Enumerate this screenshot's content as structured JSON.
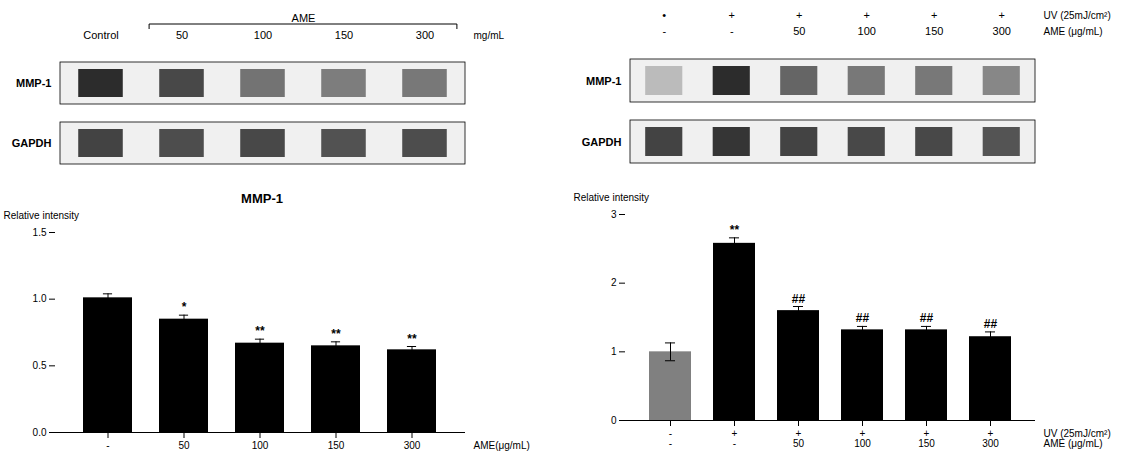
{
  "chart_data": [
    {
      "type": "blot",
      "rows": [
        "MMP-1",
        "GAPDH"
      ],
      "cells": [
        [
          0.82,
          0.7,
          0.52,
          0.48,
          0.5
        ],
        [
          0.72,
          0.68,
          0.7,
          0.66,
          0.68
        ]
      ],
      "category_rows": [
        {
          "name": "mg/mL",
          "labels": [
            "Control",
            "50",
            "100",
            "150",
            "300"
          ]
        }
      ],
      "bracket": {
        "label": "AME",
        "from": "50",
        "to": "300"
      }
    },
    {
      "type": "blot",
      "rows": [
        "MMP-1",
        "GAPDH"
      ],
      "cells": [
        [
          0.22,
          0.82,
          0.58,
          0.5,
          0.5,
          0.44
        ],
        [
          0.72,
          0.78,
          0.72,
          0.7,
          0.7,
          0.65
        ]
      ],
      "category_rows": [
        {
          "name": "UV (25mJ/cm²)",
          "labels": [
            "•",
            "+",
            "+",
            "+",
            "+",
            "+"
          ]
        },
        {
          "name": "AME (μg/mL)",
          "labels": [
            "-",
            "-",
            "50",
            "100",
            "150",
            "300"
          ]
        }
      ]
    },
    {
      "type": "bar",
      "title": "MMP-1",
      "category_rows": [
        {
          "name": "AME(μg/mL)",
          "labels": [
            "-",
            "50",
            "100",
            "150",
            "300"
          ]
        }
      ],
      "values": [
        1.01,
        0.85,
        0.67,
        0.65,
        0.62
      ],
      "errors": [
        0.03,
        0.03,
        0.03,
        0.03,
        0.025
      ],
      "colors": [
        "#000000",
        "#000000",
        "#000000",
        "#000000",
        "#000000"
      ],
      "annotations": [
        null,
        "*",
        "**",
        "**",
        "**"
      ],
      "ylabel": "Relative intensity",
      "ylim": [
        0,
        1.5
      ],
      "yticks": [
        {
          "value": 0,
          "label": "0.0"
        },
        0.5,
        {
          "value": 1,
          "label": "1.0"
        },
        1.5
      ]
    },
    {
      "type": "bar",
      "category_rows": [
        {
          "name": "UV (25mJ/cm²)",
          "labels": [
            "-",
            "+",
            "+",
            "+",
            "+",
            "+"
          ]
        },
        {
          "name": "AME (μg/mL)",
          "labels": [
            "-",
            "-",
            "50",
            "100",
            "150",
            "300"
          ]
        }
      ],
      "values": [
        1.0,
        2.58,
        1.6,
        1.32,
        1.32,
        1.22
      ],
      "errors": [
        0.13,
        0.08,
        0.06,
        0.05,
        0.05,
        0.07
      ],
      "colors": [
        "#808080",
        "#000000",
        "#000000",
        "#000000",
        "#000000",
        "#000000"
      ],
      "annotations": [
        null,
        "**",
        "##",
        "##",
        "##",
        "##"
      ],
      "ylabel": "Relative intensity",
      "ylim": [
        0,
        3
      ],
      "yticks": [
        0,
        1,
        2,
        3
      ]
    }
  ]
}
